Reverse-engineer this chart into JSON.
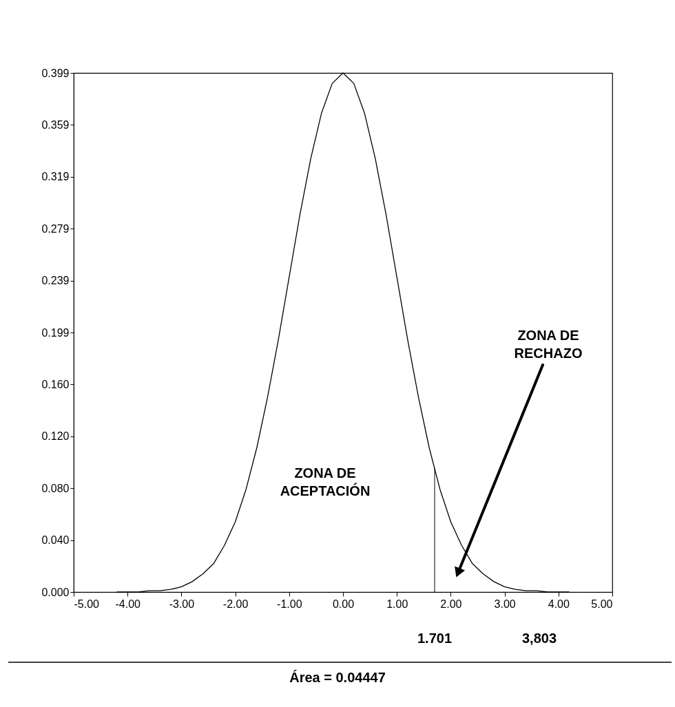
{
  "chart_data": {
    "type": "line",
    "x": [
      -4.2,
      -4.0,
      -3.8,
      -3.6,
      -3.4,
      -3.2,
      -3.0,
      -2.8,
      -2.6,
      -2.4,
      -2.2,
      -2.0,
      -1.8,
      -1.6,
      -1.4,
      -1.2,
      -1.0,
      -0.8,
      -0.6,
      -0.4,
      -0.2,
      0.0,
      0.2,
      0.4,
      0.6,
      0.8,
      1.0,
      1.2,
      1.4,
      1.6,
      1.8,
      2.0,
      2.2,
      2.4,
      2.6,
      2.8,
      3.0,
      3.2,
      3.4,
      3.6,
      3.8,
      4.0,
      4.2
    ],
    "series": [
      {
        "color": "#000000",
        "values": [
          0.0,
          0.0,
          0.0,
          0.001,
          0.001,
          0.002,
          0.004,
          0.008,
          0.014,
          0.022,
          0.036,
          0.054,
          0.079,
          0.111,
          0.15,
          0.194,
          0.242,
          0.29,
          0.333,
          0.368,
          0.391,
          0.399,
          0.391,
          0.368,
          0.333,
          0.29,
          0.242,
          0.194,
          0.15,
          0.111,
          0.079,
          0.054,
          0.036,
          0.022,
          0.014,
          0.008,
          0.004,
          0.002,
          0.001,
          0.001,
          0.0,
          0.0,
          0.0
        ]
      }
    ],
    "xlim": [
      -5,
      5
    ],
    "xticks": [
      {
        "value": -5,
        "label": "-5.00"
      },
      {
        "value": -4,
        "label": "-4.00"
      },
      {
        "value": -3,
        "label": "-3.00"
      },
      {
        "value": -2,
        "label": "-2.00"
      },
      {
        "value": -1,
        "label": "-1.00"
      },
      {
        "value": 0,
        "label": "0.00"
      },
      {
        "value": 1,
        "label": "1.00"
      },
      {
        "value": 2,
        "label": "2.00"
      },
      {
        "value": 3,
        "label": "3.00"
      },
      {
        "value": 4,
        "label": "4.00"
      },
      {
        "value": 5,
        "label": "5.00"
      }
    ],
    "ylim": [
      0,
      0.399
    ],
    "yticks": [
      {
        "value": 0,
        "label": "0.000"
      },
      {
        "value": 0.0399,
        "label": "0.040"
      },
      {
        "value": 0.0798,
        "label": "0.080"
      },
      {
        "value": 0.1197,
        "label": "0.120"
      },
      {
        "value": 0.1596,
        "label": "0.160"
      },
      {
        "value": 0.1995,
        "label": "0.199"
      },
      {
        "value": 0.2394,
        "label": "0.239"
      },
      {
        "value": 0.2793,
        "label": "0.279"
      },
      {
        "value": 0.3192,
        "label": "0.319"
      },
      {
        "value": 0.3591,
        "label": "0.359"
      },
      {
        "value": 0.399,
        "label": "0.399"
      }
    ],
    "ref_lines": [
      {
        "axis": "x",
        "value": 1.701,
        "label": "1.701"
      }
    ],
    "annotations": [
      "ZONA DE\nACEPTACIÓN",
      "ZONA DE\nRECHAZO",
      "3,803",
      "Área = 0.04447"
    ],
    "grid": false,
    "marker": "none",
    "line_style": "solid"
  }
}
